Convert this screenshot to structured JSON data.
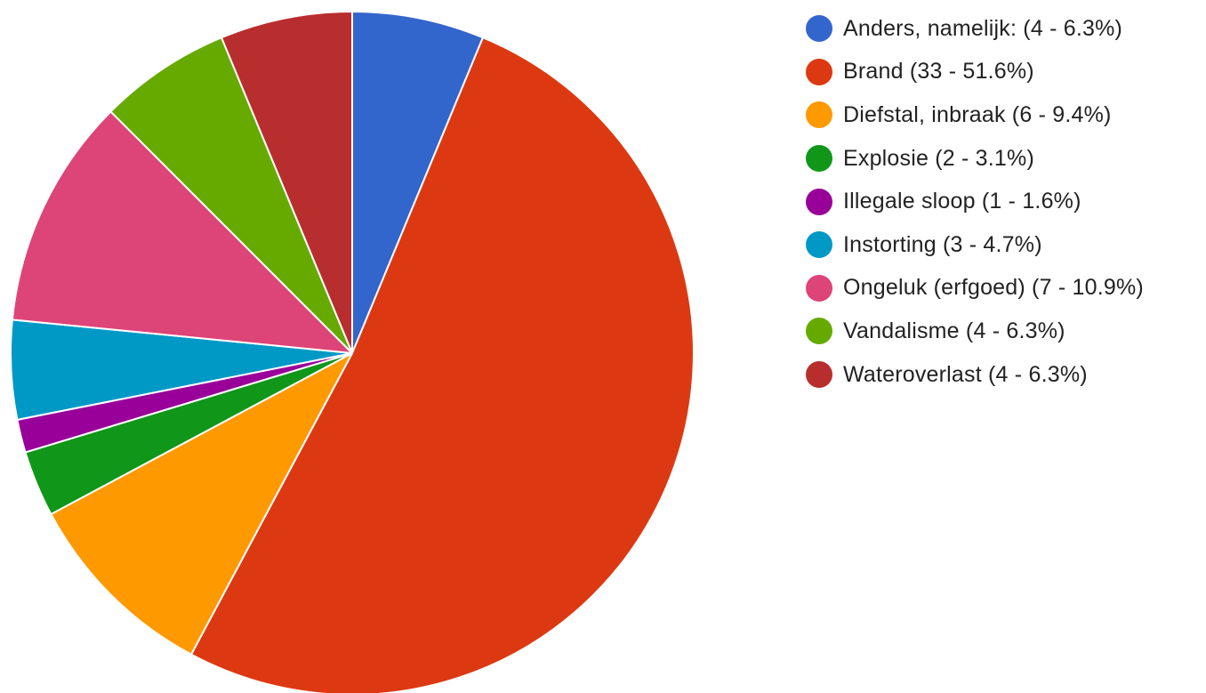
{
  "chart_data": {
    "type": "pie",
    "title": "",
    "legend_position": "right",
    "start_angle_deg": 0,
    "direction": "clockwise",
    "slices": [
      {
        "name": "Anders, namelijk:",
        "value": 4,
        "percent": 6.3,
        "color": "#3366cc",
        "legend_label": "Anders, namelijk: (4 - 6.3%)"
      },
      {
        "name": "Brand",
        "value": 33,
        "percent": 51.6,
        "color": "#dc3912",
        "legend_label": "Brand (33 - 51.6%)"
      },
      {
        "name": "Diefstal, inbraak",
        "value": 6,
        "percent": 9.4,
        "color": "#ff9900",
        "legend_label": "Diefstal, inbraak (6 - 9.4%)"
      },
      {
        "name": "Explosie",
        "value": 2,
        "percent": 3.1,
        "color": "#109618",
        "legend_label": "Explosie (2 - 3.1%)"
      },
      {
        "name": "Illegale sloop",
        "value": 1,
        "percent": 1.6,
        "color": "#990099",
        "legend_label": "Illegale sloop (1 - 1.6%)"
      },
      {
        "name": "Instorting",
        "value": 3,
        "percent": 4.7,
        "color": "#0099c6",
        "legend_label": "Instorting (3 - 4.7%)"
      },
      {
        "name": "Ongeluk (erfgoed)",
        "value": 7,
        "percent": 10.9,
        "color": "#dd4477",
        "legend_label": "Ongeluk (erfgoed) (7 - 10.9%)"
      },
      {
        "name": "Vandalisme",
        "value": 4,
        "percent": 6.3,
        "color": "#66aa00",
        "legend_label": "Vandalisme (4 - 6.3%)"
      },
      {
        "name": "Wateroverlast",
        "value": 4,
        "percent": 6.3,
        "color": "#b82e2e",
        "legend_label": "Wateroverlast (4 - 6.3%)"
      }
    ]
  }
}
